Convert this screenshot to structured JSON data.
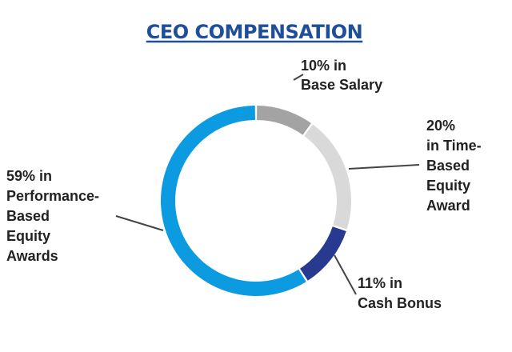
{
  "chart_data": {
    "type": "pie",
    "style": "donut",
    "title": "CEO COMPENSATION",
    "unit": "%",
    "slices": [
      {
        "key": "base_salary",
        "value": 10,
        "color": "#a3a3a3",
        "label_lines": [
          "10% in",
          "Base Salary"
        ]
      },
      {
        "key": "time_based_equity",
        "value": 20,
        "color": "#d9d9d9",
        "label_lines": [
          "20%",
          "in Time-",
          "Based",
          "Equity",
          "Award"
        ]
      },
      {
        "key": "cash_bonus",
        "value": 11,
        "color": "#283a8f",
        "label_lines": [
          "11% in",
          "Cash Bonus"
        ]
      },
      {
        "key": "performance_based_equity",
        "value": 59,
        "color": "#0c9be0",
        "label_lines": [
          "59% in",
          "Performance-",
          "Based",
          "Equity",
          "Awards"
        ]
      }
    ],
    "colors": {
      "title": "#1f4e9b",
      "label_text": "#222222",
      "leader_line": "#444444"
    }
  }
}
